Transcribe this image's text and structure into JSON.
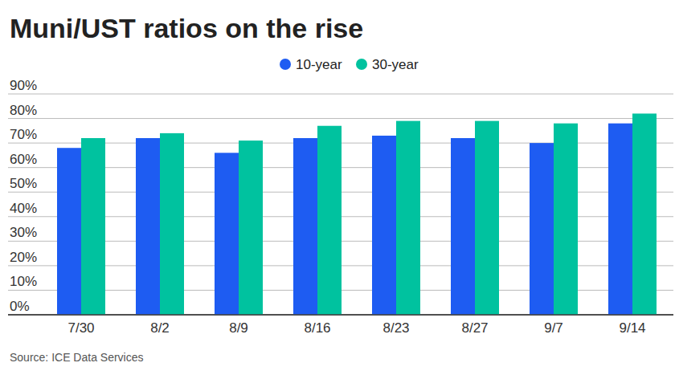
{
  "chart_data": {
    "type": "bar",
    "title": "Muni/UST ratios on the rise",
    "source": "Source: ICE Data Services",
    "categories": [
      "7/30",
      "8/2",
      "8/9",
      "8/16",
      "8/23",
      "8/27",
      "9/7",
      "9/14"
    ],
    "series": [
      {
        "name": "10-year",
        "color": "#1e5cf2",
        "values": [
          68,
          72,
          66,
          72,
          73,
          72,
          70,
          78
        ]
      },
      {
        "name": "30-year",
        "color": "#00c29f",
        "values": [
          72,
          74,
          71,
          77,
          79,
          79,
          78,
          82
        ]
      }
    ],
    "ylim": [
      0,
      90
    ],
    "yticks": [
      {
        "value": 0,
        "label": "0%"
      },
      {
        "value": 10,
        "label": "10%"
      },
      {
        "value": 20,
        "label": "20%"
      },
      {
        "value": 30,
        "label": "30%"
      },
      {
        "value": 40,
        "label": "40%"
      },
      {
        "value": 50,
        "label": "50%"
      },
      {
        "value": 60,
        "label": "60%"
      },
      {
        "value": 70,
        "label": "70%"
      },
      {
        "value": 80,
        "label": "80%"
      },
      {
        "value": 90,
        "label": "90%"
      }
    ],
    "grid": true,
    "legend": "top"
  }
}
